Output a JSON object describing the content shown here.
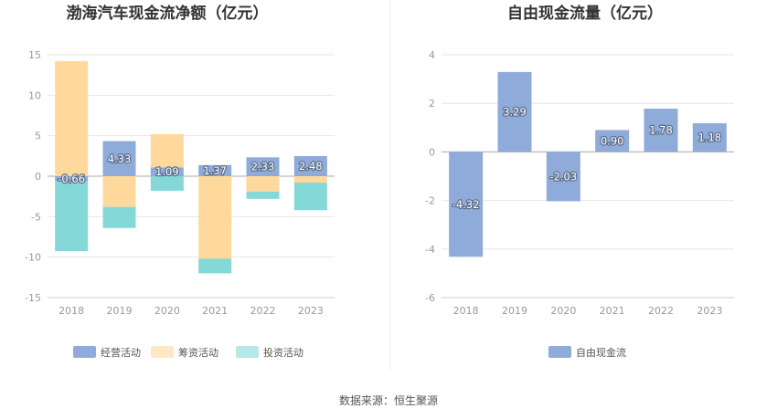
{
  "source": "数据来源：恒生聚源",
  "chart_data": [
    {
      "type": "bar",
      "stacked": true,
      "title": "渤海汽车现金流净额（亿元）",
      "categories": [
        "2018",
        "2019",
        "2020",
        "2021",
        "2022",
        "2023"
      ],
      "ylim": [
        -15,
        15
      ],
      "yticks": [
        15,
        10,
        5,
        0,
        -5,
        -10,
        -15
      ],
      "grid": true,
      "legend_position": "bottom",
      "series": [
        {
          "name": "经营活动",
          "color": "#8eabd9",
          "values": [
            -0.66,
            4.33,
            1.09,
            1.37,
            2.33,
            2.48
          ],
          "labels": [
            "-0.66",
            "4.33",
            "1.09",
            "1.37",
            "2.33",
            "2.48"
          ]
        },
        {
          "name": "筹资活动",
          "color": "#ffd89b",
          "values": [
            14.2,
            -3.8,
            4.1,
            -10.2,
            -1.9,
            -0.8
          ]
        },
        {
          "name": "投资活动",
          "color": "#84d8d8",
          "values": [
            -8.6,
            -2.6,
            -1.8,
            -1.8,
            -0.9,
            -3.4
          ]
        }
      ]
    },
    {
      "type": "bar",
      "title": "自由现金流量（亿元）",
      "categories": [
        "2018",
        "2019",
        "2020",
        "2021",
        "2022",
        "2023"
      ],
      "ylim": [
        -6,
        4
      ],
      "yticks": [
        4,
        2,
        0,
        -2,
        -4,
        -6
      ],
      "grid": true,
      "legend_position": "bottom",
      "series": [
        {
          "name": "自由现金流",
          "color": "#8eabd9",
          "values": [
            -4.32,
            3.29,
            -2.03,
            0.9,
            1.78,
            1.18
          ],
          "labels": [
            "-4.32",
            "3.29",
            "-2.03",
            "0.90",
            "1.78",
            "1.18"
          ]
        }
      ]
    }
  ]
}
